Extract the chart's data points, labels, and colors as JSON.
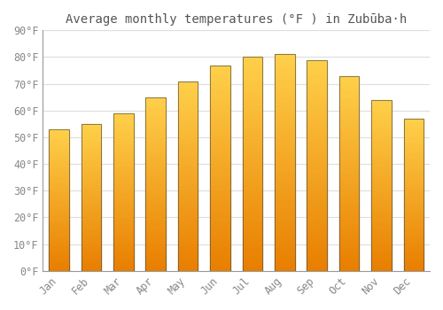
{
  "title": "Average monthly temperatures (°F ) in Zubūba·h",
  "months": [
    "Jan",
    "Feb",
    "Mar",
    "Apr",
    "May",
    "Jun",
    "Jul",
    "Aug",
    "Sep",
    "Oct",
    "Nov",
    "Dec"
  ],
  "values": [
    53,
    55,
    59,
    65,
    71,
    77,
    80,
    81,
    79,
    73,
    64,
    57
  ],
  "bar_color_bottom": "#E87E00",
  "bar_color_top": "#FFD04A",
  "bar_edge_color": "#555555",
  "ylim": [
    0,
    90
  ],
  "yticks": [
    0,
    10,
    20,
    30,
    40,
    50,
    60,
    70,
    80,
    90
  ],
  "ytick_labels": [
    "0°F",
    "10°F",
    "20°F",
    "30°F",
    "40°F",
    "50°F",
    "60°F",
    "70°F",
    "80°F",
    "90°F"
  ],
  "background_color": "#FFFFFF",
  "grid_color": "#DDDDDD",
  "font_color": "#888888",
  "title_font_color": "#555555",
  "title_fontsize": 10,
  "tick_fontsize": 8.5
}
